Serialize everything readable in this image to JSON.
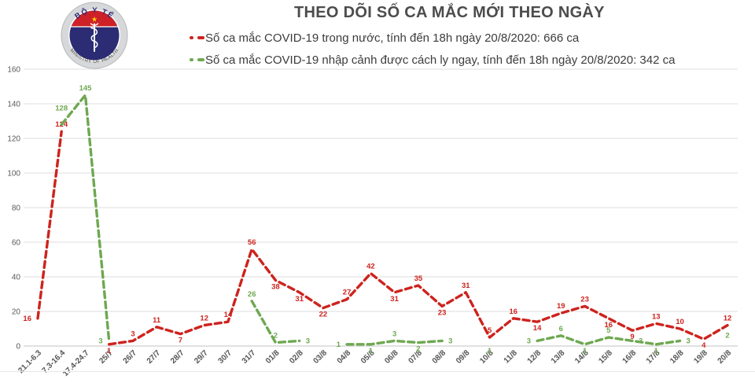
{
  "logo": {
    "top_text": "BỘ Y TẾ",
    "bottom_text": "MINISTRY OF HEALTH"
  },
  "colors": {
    "domestic_red": "#cd231e",
    "imported_green": "#6ea850",
    "gridline": "#dcdcdc",
    "zero_axis": "#c3c3c3",
    "tick_text": "#595959",
    "title_text": "#4c4c4c",
    "legend_text": "#3c3c3c",
    "bottom_border": "#e7e7e7"
  },
  "chart_data": {
    "type": "line",
    "title": "THEO DÕI SỐ CA MẮC MỚI THEO NGÀY",
    "xlabel": "",
    "ylabel": "",
    "ylim": [
      0,
      160
    ],
    "yticks": [
      0,
      20,
      40,
      60,
      80,
      100,
      120,
      140,
      160
    ],
    "grid": true,
    "legend_position": "top-left",
    "line_style": "dashed",
    "categories": [
      "21.1-6.3",
      "7.3-16.4",
      "17.4-24.7",
      "25/7",
      "26/7",
      "27/7",
      "28/7",
      "29/7",
      "30/7",
      "31/7",
      "01/8",
      "02/8",
      "03/8",
      "04/8",
      "05/8",
      "06/8",
      "07/8",
      "08/8",
      "09/8",
      "10/8",
      "11/8",
      "12/8",
      "13/8",
      "14/8",
      "15/8",
      "16/8",
      "17/8",
      "18/8",
      "19/8",
      "20/8"
    ],
    "series": [
      {
        "name": "Số ca mắc COVID-19 trong nước",
        "legend": "Số ca mắc COVID-19 trong nước, tính đến 18h ngày 20/8/2020: 666 ca",
        "total": 666,
        "color": "#cd231e",
        "values": [
          16,
          124,
          null,
          1,
          3,
          11,
          7,
          12,
          14,
          56,
          38,
          31,
          22,
          27,
          42,
          31,
          35,
          23,
          31,
          5,
          16,
          14,
          19,
          23,
          16,
          9,
          13,
          10,
          4,
          12
        ],
        "label_pos": [
          "l",
          "a",
          null,
          "b",
          "a",
          "a",
          "b",
          "a",
          "a",
          "a",
          "b",
          "b",
          "b",
          "a",
          "a",
          "b",
          "a",
          "b",
          "a",
          "a",
          "a",
          "b",
          "a",
          "a",
          "b",
          "b",
          "a",
          "a",
          "b",
          "a"
        ]
      },
      {
        "name": "Số ca mắc COVID-19 nhập cảnh được cách ly ngay",
        "legend": "Số ca mắc COVID-19 nhập cảnh được cách ly ngay, tính đến 18h ngày 20/8/2020: 342 ca",
        "total": 342,
        "color": "#6ea850",
        "values": [
          null,
          128,
          145,
          3,
          null,
          null,
          null,
          null,
          null,
          26,
          2,
          3,
          null,
          1,
          1,
          3,
          2,
          3,
          null,
          1,
          null,
          3,
          6,
          1,
          5,
          3,
          1,
          3,
          null,
          2
        ],
        "label_pos": [
          null,
          "aa",
          "a",
          "l",
          null,
          null,
          null,
          null,
          null,
          "a",
          "a",
          "r",
          null,
          "l",
          "b",
          "a",
          "b",
          "r",
          null,
          "b",
          null,
          "l",
          "a",
          "b",
          "a",
          "r",
          "b",
          "r",
          null,
          "a"
        ]
      }
    ]
  }
}
